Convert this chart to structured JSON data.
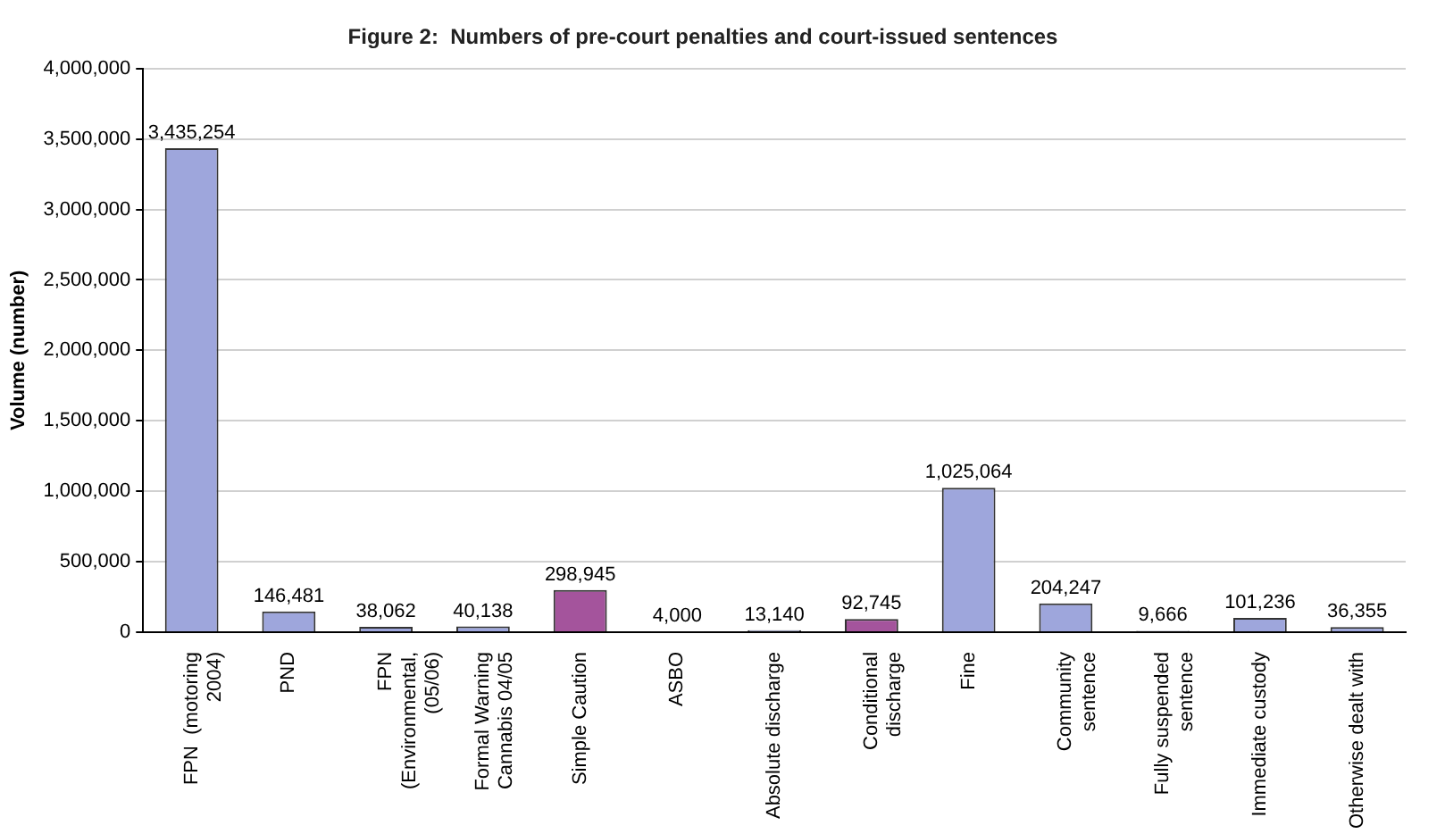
{
  "chart_data": {
    "type": "bar",
    "title": "Figure 2:  Numbers of pre-court penalties and court-issued sentences",
    "ylabel": "Volume (number)",
    "categories": [
      "FPN  (motoring\n2004)",
      "PND",
      "FPN\n(Environmental,\n(05/06)",
      "Formal Warning\nCannabis 04/05",
      "Simple Caution",
      "ASBO",
      "Absolute discharge",
      "Conditional\ndischarge",
      "Fine",
      "Community\nsentence",
      "Fully suspended\nsentence",
      "Immediate custody",
      "Otherwise dealt with"
    ],
    "values": [
      3435254,
      146481,
      38062,
      40138,
      298945,
      4000,
      13140,
      92745,
      1025064,
      204247,
      9666,
      101236,
      36355
    ],
    "value_labels": [
      "3,435,254",
      "146,481",
      "38,062",
      "40,138",
      "298,945",
      "4,000",
      "13,140",
      "92,745",
      "1,025,064",
      "204,247",
      "9,666",
      "101,236",
      "36,355"
    ],
    "colors": [
      "#9ea6dc",
      "#9ea6dc",
      "#9ea6dc",
      "#9ea6dc",
      "#a4549c",
      "#9ea6dc",
      "#9ea6dc",
      "#a4549c",
      "#9ea6dc",
      "#9ea6dc",
      "#9ea6dc",
      "#9ea6dc",
      "#9ea6dc"
    ],
    "ylim": [
      0,
      4000000
    ],
    "yticks": [
      0,
      {
        "value": 500000,
        "label": "500,000"
      },
      {
        "value": 1000000,
        "label": "1,000,000"
      },
      {
        "value": 1500000,
        "label": "1,500,000"
      },
      {
        "value": 2000000,
        "label": "2,000,000"
      },
      {
        "value": 2500000,
        "label": "2,500,000"
      },
      {
        "value": 3000000,
        "label": "3,000,000"
      },
      {
        "value": 3500000,
        "label": "3,500,000"
      },
      {
        "value": 4000000,
        "label": "4,000,000"
      }
    ],
    "grid": "y",
    "legend": false
  }
}
